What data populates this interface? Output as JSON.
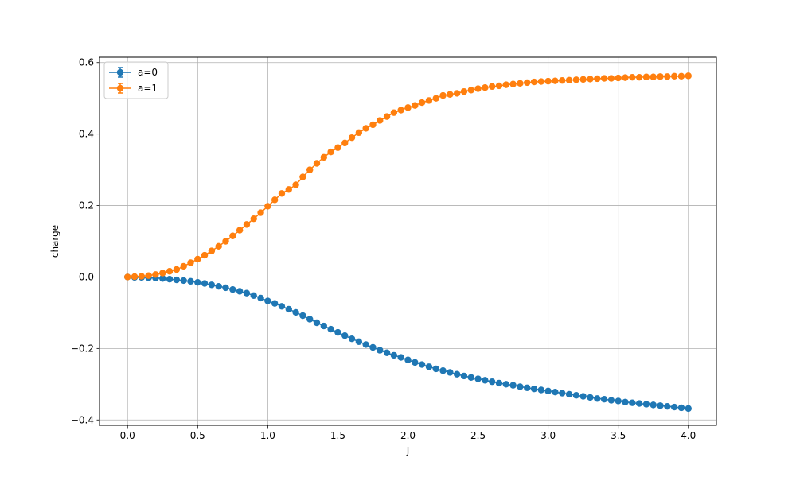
{
  "chart_data": {
    "type": "line",
    "xlabel": "J",
    "ylabel": "charge",
    "xlim": [
      -0.2,
      4.2
    ],
    "ylim": [
      -0.415,
      0.615
    ],
    "xticks": [
      0.0,
      0.5,
      1.0,
      1.5,
      2.0,
      2.5,
      3.0,
      3.5,
      4.0
    ],
    "xtick_labels": [
      "0.0",
      "0.5",
      "1.0",
      "1.5",
      "2.0",
      "2.5",
      "3.0",
      "3.5",
      "4.0"
    ],
    "yticks": [
      -0.4,
      -0.2,
      0.0,
      0.2,
      0.4,
      0.6
    ],
    "ytick_labels": [
      "−0.4",
      "−0.2",
      "0.0",
      "0.2",
      "0.4",
      "0.6"
    ],
    "grid": true,
    "legend_position": "top-left",
    "marker": "circle",
    "error_bars": true,
    "series": [
      {
        "name": "a=0",
        "color": "#1f77b4",
        "x": [
          0.0,
          0.05,
          0.1,
          0.15,
          0.2,
          0.25,
          0.3,
          0.35,
          0.4,
          0.45,
          0.5,
          0.55,
          0.6,
          0.65,
          0.7,
          0.75,
          0.8,
          0.85,
          0.9,
          0.95,
          1.0,
          1.05,
          1.1,
          1.15,
          1.2,
          1.25,
          1.3,
          1.35,
          1.4,
          1.45,
          1.5,
          1.55,
          1.6,
          1.65,
          1.7,
          1.75,
          1.8,
          1.85,
          1.9,
          1.95,
          2.0,
          2.05,
          2.1,
          2.15,
          2.2,
          2.25,
          2.3,
          2.35,
          2.4,
          2.45,
          2.5,
          2.55,
          2.6,
          2.65,
          2.7,
          2.75,
          2.8,
          2.85,
          2.9,
          2.95,
          3.0,
          3.05,
          3.1,
          3.15,
          3.2,
          3.25,
          3.3,
          3.35,
          3.4,
          3.45,
          3.5,
          3.55,
          3.6,
          3.65,
          3.7,
          3.75,
          3.8,
          3.85,
          3.9,
          3.95,
          4.0
        ],
        "y": [
          0.0,
          -0.001,
          -0.001,
          -0.002,
          -0.003,
          -0.004,
          -0.006,
          -0.008,
          -0.01,
          -0.012,
          -0.015,
          -0.018,
          -0.022,
          -0.026,
          -0.03,
          -0.035,
          -0.04,
          -0.045,
          -0.052,
          -0.059,
          -0.067,
          -0.074,
          -0.082,
          -0.09,
          -0.099,
          -0.108,
          -0.118,
          -0.128,
          -0.137,
          -0.146,
          -0.155,
          -0.164,
          -0.173,
          -0.181,
          -0.189,
          -0.197,
          -0.205,
          -0.212,
          -0.219,
          -0.225,
          -0.232,
          -0.239,
          -0.245,
          -0.251,
          -0.257,
          -0.262,
          -0.267,
          -0.272,
          -0.277,
          -0.281,
          -0.285,
          -0.289,
          -0.293,
          -0.297,
          -0.3,
          -0.303,
          -0.307,
          -0.31,
          -0.313,
          -0.316,
          -0.319,
          -0.322,
          -0.325,
          -0.328,
          -0.331,
          -0.334,
          -0.337,
          -0.34,
          -0.342,
          -0.345,
          -0.347,
          -0.35,
          -0.352,
          -0.354,
          -0.356,
          -0.358,
          -0.36,
          -0.362,
          -0.364,
          -0.366,
          -0.368
        ]
      },
      {
        "name": "a=1",
        "color": "#ff7f0e",
        "x": [
          0.0,
          0.05,
          0.1,
          0.15,
          0.2,
          0.25,
          0.3,
          0.35,
          0.4,
          0.45,
          0.5,
          0.55,
          0.6,
          0.65,
          0.7,
          0.75,
          0.8,
          0.85,
          0.9,
          0.95,
          1.0,
          1.05,
          1.1,
          1.15,
          1.2,
          1.25,
          1.3,
          1.35,
          1.4,
          1.45,
          1.5,
          1.55,
          1.6,
          1.65,
          1.7,
          1.75,
          1.8,
          1.85,
          1.9,
          1.95,
          2.0,
          2.05,
          2.1,
          2.15,
          2.2,
          2.25,
          2.3,
          2.35,
          2.4,
          2.45,
          2.5,
          2.55,
          2.6,
          2.65,
          2.7,
          2.75,
          2.8,
          2.85,
          2.9,
          2.95,
          3.0,
          3.05,
          3.1,
          3.15,
          3.2,
          3.25,
          3.3,
          3.35,
          3.4,
          3.45,
          3.5,
          3.55,
          3.6,
          3.65,
          3.7,
          3.75,
          3.8,
          3.85,
          3.9,
          3.95,
          4.0
        ],
        "y": [
          0.0,
          0.001,
          0.002,
          0.004,
          0.007,
          0.011,
          0.016,
          0.021,
          0.03,
          0.04,
          0.05,
          0.061,
          0.073,
          0.086,
          0.1,
          0.115,
          0.131,
          0.147,
          0.163,
          0.18,
          0.198,
          0.216,
          0.234,
          0.245,
          0.258,
          0.28,
          0.3,
          0.318,
          0.335,
          0.35,
          0.362,
          0.375,
          0.39,
          0.404,
          0.416,
          0.426,
          0.438,
          0.449,
          0.46,
          0.467,
          0.474,
          0.48,
          0.488,
          0.494,
          0.5,
          0.508,
          0.511,
          0.514,
          0.519,
          0.523,
          0.527,
          0.53,
          0.533,
          0.535,
          0.538,
          0.54,
          0.542,
          0.544,
          0.546,
          0.547,
          0.548,
          0.549,
          0.55,
          0.551,
          0.552,
          0.553,
          0.554,
          0.555,
          0.556,
          0.556,
          0.557,
          0.558,
          0.559,
          0.559,
          0.56,
          0.56,
          0.561,
          0.561,
          0.562,
          0.562,
          0.563
        ]
      }
    ]
  }
}
